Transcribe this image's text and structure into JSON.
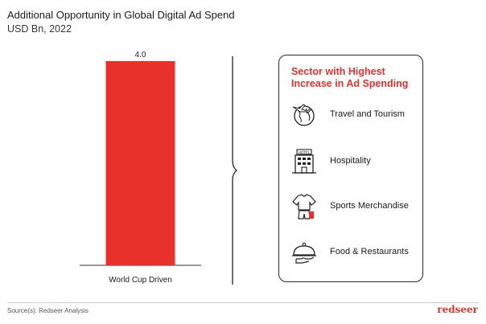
{
  "header": {
    "title": "Additional Opportunity in Global Digital Ad Spend",
    "subtitle": "USD Bn, 2022"
  },
  "chart_data": {
    "type": "bar",
    "title": "Additional Opportunity in Global Digital Ad Spend",
    "subtitle": "USD Bn, 2022",
    "categories": [
      "World Cup Driven"
    ],
    "values": [
      4.0
    ],
    "data_labels": [
      "4.0"
    ],
    "ylim": [
      0,
      4.0
    ],
    "xlabel": "",
    "ylabel": "",
    "grid": false,
    "colors": [
      "#e8312a"
    ]
  },
  "panel": {
    "title_line1": "Sector with Highest",
    "title_line2": "Increase in Ad Spending",
    "sectors": [
      {
        "label": "Travel and Tourism",
        "icon": "globe-airplane-icon"
      },
      {
        "label": "Hospitality",
        "icon": "hotel-icon"
      },
      {
        "label": "Sports Merchandise",
        "icon": "jersey-icon"
      },
      {
        "label": "Food & Restaurants",
        "icon": "food-cloche-icon"
      }
    ],
    "accent_color": "#e8312a"
  },
  "footer": {
    "source": "Source(s): Redseer Analysis",
    "brand": "redseer"
  }
}
